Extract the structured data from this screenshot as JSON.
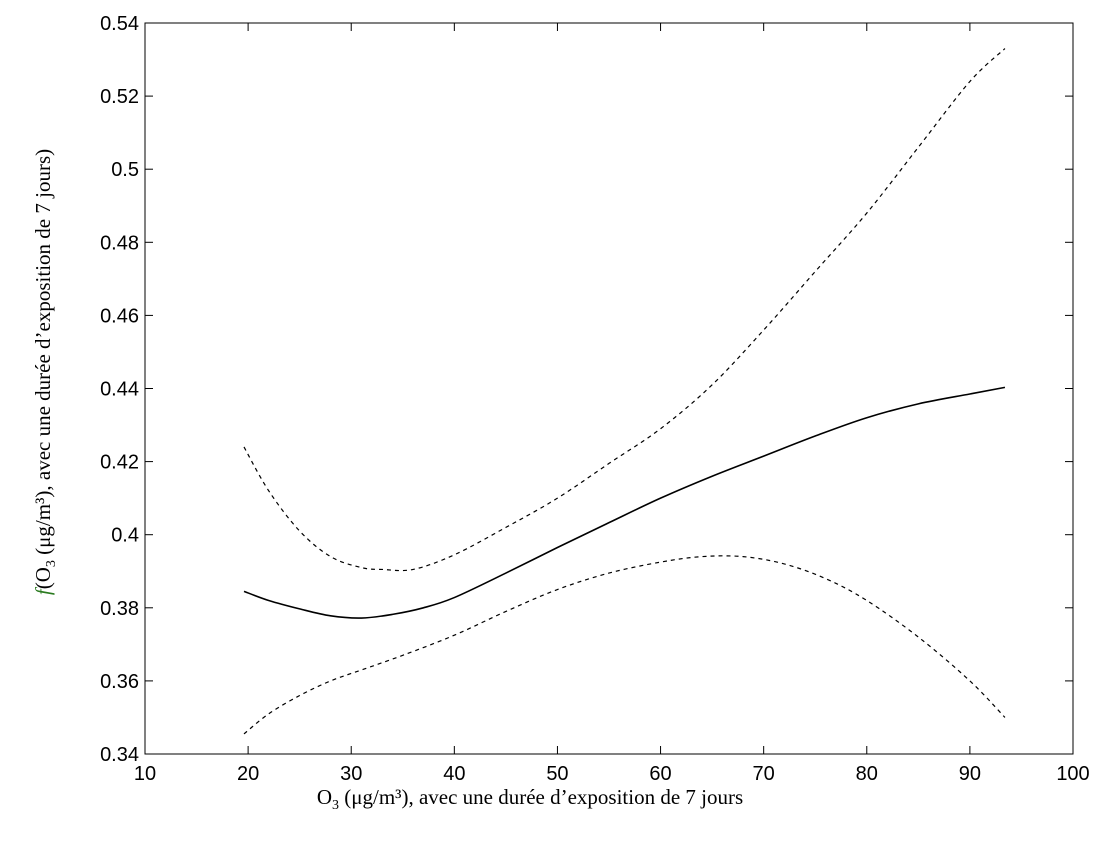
{
  "chart_data": {
    "type": "line",
    "xlabel_parts": {
      "o": "O",
      "sub": "3",
      "rest": " (μg/m³), avec une durée d’exposition de 7 jours"
    },
    "ylabel_parts": {
      "f": "f",
      "o": "(O",
      "sub": "3",
      "rest": " (μg/m³), avec une durée d’exposition de 7 jours)"
    },
    "xlim": [
      10,
      100
    ],
    "ylim": [
      0.34,
      0.54
    ],
    "xticks": [
      10,
      20,
      30,
      40,
      50,
      60,
      70,
      80,
      90,
      100
    ],
    "xtick_labels": [
      "10",
      "20",
      "30",
      "40",
      "50",
      "60",
      "70",
      "80",
      "90",
      "100"
    ],
    "yticks": [
      0.34,
      0.36,
      0.38,
      0.4,
      0.42,
      0.44,
      0.46,
      0.48,
      0.5,
      0.52,
      0.54
    ],
    "ytick_labels": [
      "0.34",
      "0.36",
      "0.38",
      "0.4",
      "0.42",
      "0.44",
      "0.46",
      "0.48",
      "0.5",
      "0.52",
      "0.54"
    ],
    "grid": false,
    "series": [
      {
        "style": "solid",
        "x": [
          19.6,
          22,
          25,
          28,
          31,
          34,
          37,
          40,
          45,
          50,
          55,
          60,
          65,
          70,
          75,
          80,
          85,
          90,
          93.4
        ],
        "y": [
          0.3845,
          0.382,
          0.3797,
          0.3778,
          0.3772,
          0.3782,
          0.38,
          0.3828,
          0.3895,
          0.3965,
          0.4033,
          0.41,
          0.416,
          0.4215,
          0.427,
          0.432,
          0.4358,
          0.4385,
          0.4403
        ]
      },
      {
        "style": "dashed",
        "x": [
          19.6,
          22,
          25,
          28,
          31,
          33,
          36,
          40,
          45,
          50,
          55,
          60,
          65,
          70,
          75,
          80,
          85,
          90,
          93.4
        ],
        "y": [
          0.424,
          0.412,
          0.401,
          0.394,
          0.391,
          0.3905,
          0.3905,
          0.3945,
          0.402,
          0.41,
          0.4195,
          0.429,
          0.441,
          0.456,
          0.472,
          0.488,
          0.506,
          0.524,
          0.533
        ]
      },
      {
        "style": "dashed",
        "x": [
          19.6,
          22,
          25,
          28,
          31,
          35,
          40,
          45,
          50,
          55,
          60,
          64,
          68,
          72,
          76,
          80,
          85,
          90,
          93.4
        ],
        "y": [
          0.3455,
          0.351,
          0.356,
          0.36,
          0.363,
          0.367,
          0.3725,
          0.379,
          0.385,
          0.3895,
          0.3925,
          0.394,
          0.394,
          0.392,
          0.388,
          0.382,
          0.372,
          0.36,
          0.35
        ]
      }
    ]
  }
}
